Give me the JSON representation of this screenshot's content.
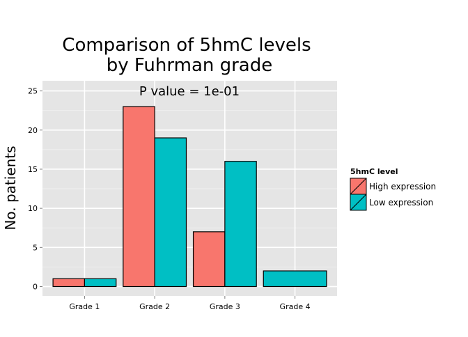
{
  "chart_data": {
    "type": "bar",
    "title_lines": [
      "Comparison of 5hmC levels",
      "by Fuhrman grade"
    ],
    "annotation": "P value = 1e-01",
    "xlabel": "",
    "ylabel": "No. patients",
    "categories": [
      "Grade 1",
      "Grade 2",
      "Grade 3",
      "Grade 4"
    ],
    "series": [
      {
        "name": "High expression",
        "values": [
          1,
          23,
          7,
          0
        ],
        "color": "#F8766D"
      },
      {
        "name": "Low expression",
        "values": [
          1,
          19,
          16,
          2
        ],
        "color": "#00BFC4"
      }
    ],
    "stacked_single_bar_categories": [
      "Grade 4"
    ],
    "ylim": [
      -1.2,
      26.3
    ],
    "yticks": [
      0,
      5,
      10,
      15,
      20,
      25
    ],
    "grid": true,
    "panel_background": "#E5E5E5",
    "legend": {
      "title": "5hmC level",
      "placement": "right"
    }
  }
}
